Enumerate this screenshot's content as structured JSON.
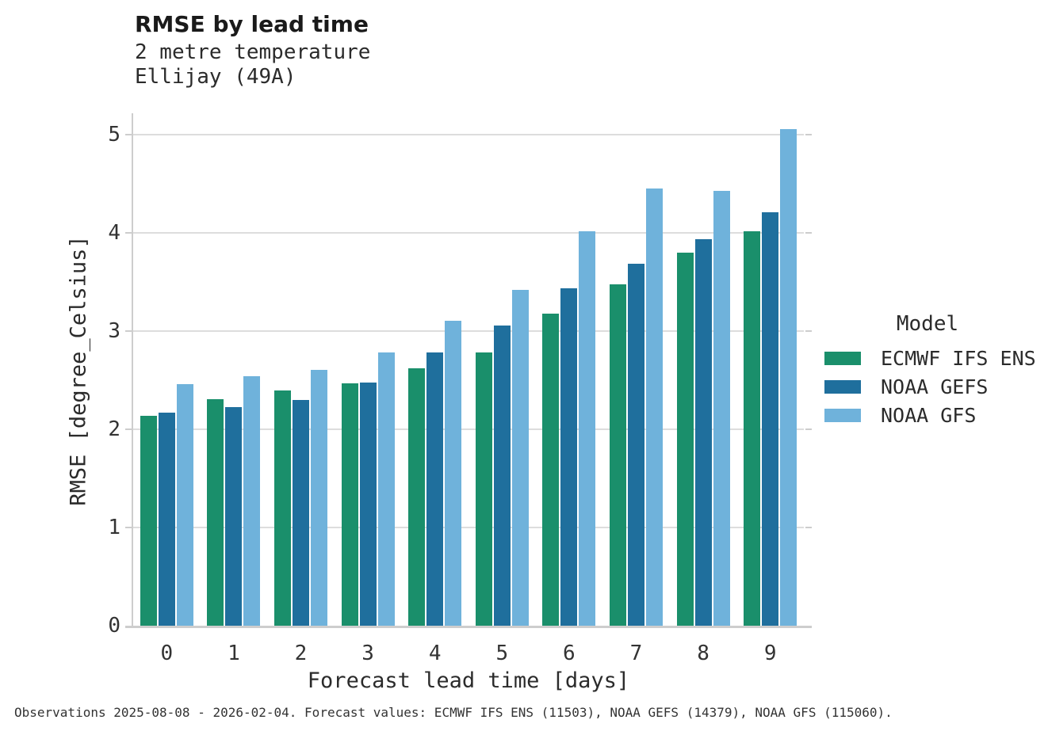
{
  "header": {
    "title": "RMSE by lead time",
    "subtitle_line1": "2 metre temperature",
    "subtitle_line2": "Ellijay (49A)"
  },
  "chart_data": {
    "type": "bar",
    "title": "RMSE by lead time",
    "subtitle": [
      "2 metre temperature",
      "Ellijay (49A)"
    ],
    "categories": [
      "0",
      "1",
      "2",
      "3",
      "4",
      "5",
      "6",
      "7",
      "8",
      "9"
    ],
    "series": [
      {
        "name": "ECMWF IFS ENS",
        "color": "#1a8f6b",
        "values": [
          2.14,
          2.31,
          2.4,
          2.47,
          2.62,
          2.78,
          3.18,
          3.48,
          3.8,
          4.02
        ]
      },
      {
        "name": "NOAA GEFS",
        "color": "#1f6f9d",
        "values": [
          2.17,
          2.23,
          2.3,
          2.48,
          2.78,
          3.06,
          3.44,
          3.69,
          3.94,
          4.21
        ]
      },
      {
        "name": "NOAA GFS",
        "color": "#6fb2db",
        "values": [
          2.46,
          2.54,
          2.61,
          2.78,
          3.11,
          3.42,
          4.02,
          4.45,
          4.43,
          5.06
        ]
      }
    ],
    "xlabel": "Forecast lead time [days]",
    "ylabel": "RMSE [degree_Celsius]",
    "yticks": [
      0,
      1,
      2,
      3,
      4,
      5
    ],
    "ylim": [
      0,
      5.22
    ],
    "grid": true,
    "legend_title": "Model",
    "legend_position": "right"
  },
  "legend": {
    "title": "Model"
  },
  "footer": {
    "caption": "Observations 2025-08-08 - 2026-02-04. Forecast values: ECMWF IFS ENS (11503), NOAA GEFS (14379), NOAA GFS (115060)."
  },
  "colors": {
    "grid": "#dddddd",
    "spine": "#cdcdcd",
    "text": "#333333"
  }
}
